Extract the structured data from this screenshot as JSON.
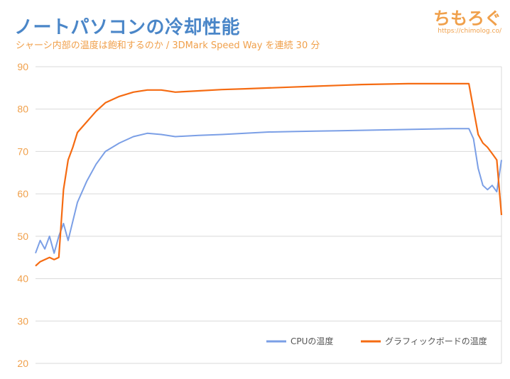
{
  "header": {
    "title": "ノートパソコンの冷却性能",
    "subtitle": "シャーシ内部の温度は飽和するのか / 3DMark Speed Way を連続 30 分"
  },
  "brand": {
    "logo_text": "ちもろぐ",
    "url": "https://chimolog.co/"
  },
  "colors": {
    "cpu": "#7b9fe6",
    "gpu": "#f56b12",
    "grid": "#d9d9d9",
    "axis_text": "#f0a04b"
  },
  "chart_data": {
    "type": "line",
    "title": "",
    "xlabel": "",
    "ylabel": "",
    "ylim": [
      20,
      90
    ],
    "yticks": [
      20,
      30,
      40,
      50,
      60,
      70,
      80,
      90
    ],
    "x_label_display": "none",
    "grid": true,
    "legend_position": "bottom-right",
    "x_domain": [
      0,
      100
    ],
    "series": [
      {
        "name": "CPUの温度",
        "color": "#7b9fe6",
        "x": [
          0,
          1,
          2,
          3,
          4,
          5,
          6,
          7,
          9,
          11,
          13,
          15,
          18,
          21,
          24,
          27,
          30,
          35,
          40,
          45,
          50,
          55,
          60,
          65,
          70,
          75,
          80,
          85,
          90,
          93,
          94,
          95,
          96,
          97,
          98,
          99,
          100
        ],
        "y": [
          46,
          49,
          47,
          50,
          46,
          50,
          53,
          49,
          58,
          63,
          67,
          70,
          72,
          73.5,
          74.3,
          74,
          73.5,
          73.8,
          74,
          74.3,
          74.6,
          74.7,
          74.8,
          74.9,
          75,
          75.1,
          75.2,
          75.3,
          75.4,
          75.4,
          73,
          66,
          62,
          61,
          62,
          60.5,
          68
        ]
      },
      {
        "name": "グラフィックボードの温度",
        "color": "#f56b12",
        "x": [
          0,
          1,
          2,
          3,
          4,
          5,
          6,
          7,
          8,
          9,
          11,
          13,
          15,
          18,
          21,
          24,
          27,
          30,
          35,
          40,
          45,
          50,
          55,
          60,
          65,
          70,
          75,
          80,
          85,
          90,
          93,
          94,
          95,
          96,
          97,
          98,
          99,
          100
        ],
        "y": [
          43,
          44,
          44.5,
          45,
          44.5,
          45,
          61,
          68,
          71,
          74.5,
          77,
          79.5,
          81.5,
          83,
          84,
          84.5,
          84.5,
          84,
          84.3,
          84.6,
          84.8,
          85,
          85.2,
          85.4,
          85.6,
          85.8,
          85.9,
          86,
          86,
          86,
          86,
          80,
          74,
          72,
          71,
          69.5,
          68,
          55
        ]
      }
    ]
  }
}
